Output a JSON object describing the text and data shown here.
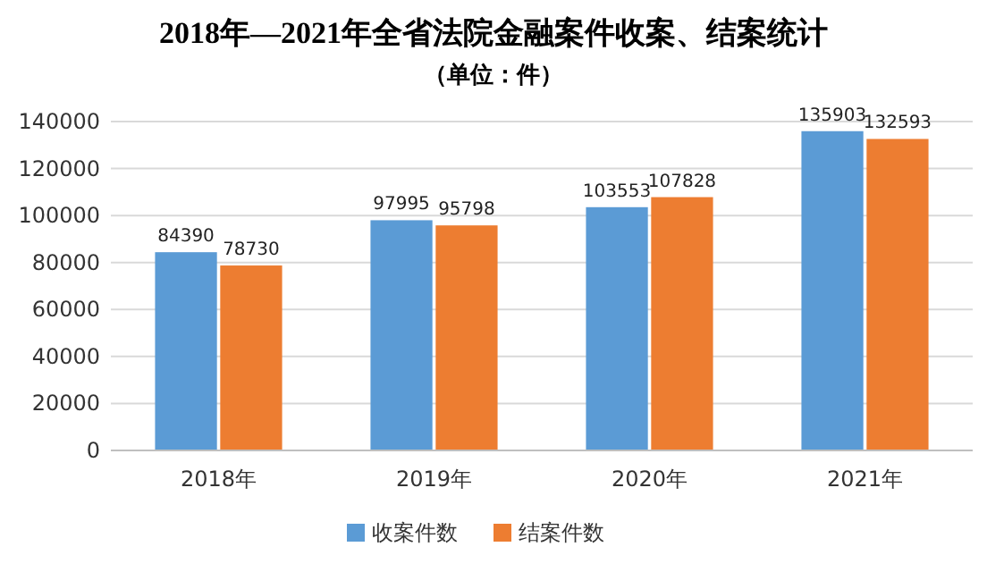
{
  "chart_data": {
    "type": "bar",
    "title": "2018年—2021年全省法院金融案件收案、结案统计",
    "subtitle": "（单位：件）",
    "categories": [
      "2018年",
      "2019年",
      "2020年",
      "2021年"
    ],
    "series": [
      {
        "name": "收案件数",
        "color": "#5b9bd5",
        "values": [
          84390,
          97995,
          103553,
          135903
        ]
      },
      {
        "name": "结案件数",
        "color": "#ed7d31",
        "values": [
          78730,
          95798,
          107828,
          132593
        ]
      }
    ],
    "ylim": [
      0,
      140000
    ],
    "yticks": [
      0,
      20000,
      40000,
      60000,
      80000,
      100000,
      120000,
      140000
    ],
    "grid": "y",
    "legend": "bottom",
    "data_labels": true
  }
}
